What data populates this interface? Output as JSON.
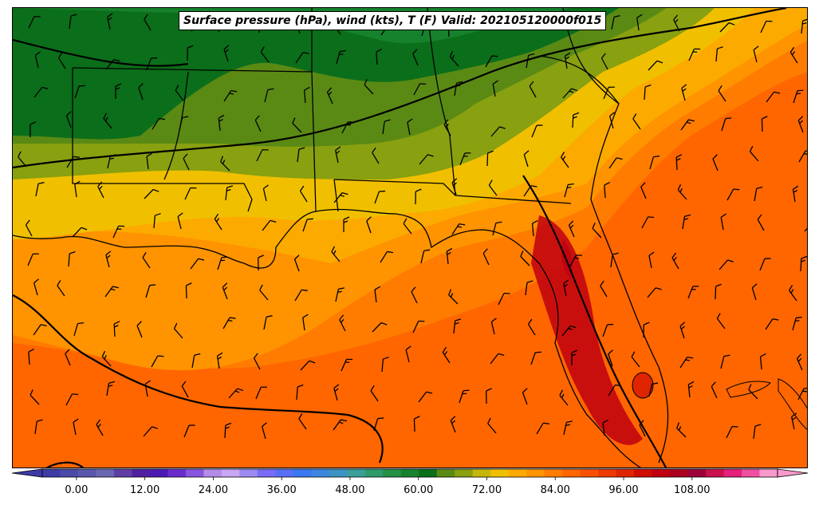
{
  "title": "Surface pressure (hPa), wind (kts), T (F) Valid: 202105120000f015",
  "colorbar": {
    "tick_labels": [
      "0.00",
      "12.00",
      "24.00",
      "36.00",
      "48.00",
      "60.00",
      "72.00",
      "84.00",
      "96.00",
      "108.00"
    ],
    "min": -6,
    "max": 123,
    "step": 3,
    "colors": [
      "#3d3ba6",
      "#4a4aa8",
      "#5a58ab",
      "#6a67b2",
      "#5e3ea3",
      "#4f20a0",
      "#4b1ab3",
      "#6a2bcc",
      "#8a55dd",
      "#b28ce8",
      "#c8a6f2",
      "#9d8af0",
      "#7a6cf4",
      "#5570f5",
      "#3b78f0",
      "#3d86e0",
      "#3c92c2",
      "#3a9e9a",
      "#2e9a6a",
      "#239046",
      "#17822e",
      "#0b6e1a",
      "#5a8a14",
      "#89a010",
      "#c5b70a",
      "#f0c000",
      "#fcaa00",
      "#ff9300",
      "#ff7c00",
      "#ff6600",
      "#f85000",
      "#ed3a00",
      "#df2400",
      "#cf0d00",
      "#bf0010",
      "#ab0020",
      "#9b0038",
      "#c8104d",
      "#e4207a",
      "#f04ea0",
      "#f79acb"
    ]
  },
  "map": {
    "field": "temperature (F) with surface pressure contours and wind barbs",
    "region": "US Gulf Coast, Louisiana to Florida",
    "colors": {
      "cool_green": "#0b6e1a",
      "mid_green": "#5a8a14",
      "olive": "#89a010",
      "yellow": "#f0c000",
      "orange_light": "#fcaa00",
      "orange": "#ff9300",
      "orange_dark": "#ff7c00",
      "red_orange": "#ff6600",
      "red": "#df2400",
      "deep_red": "#bf0010"
    }
  }
}
